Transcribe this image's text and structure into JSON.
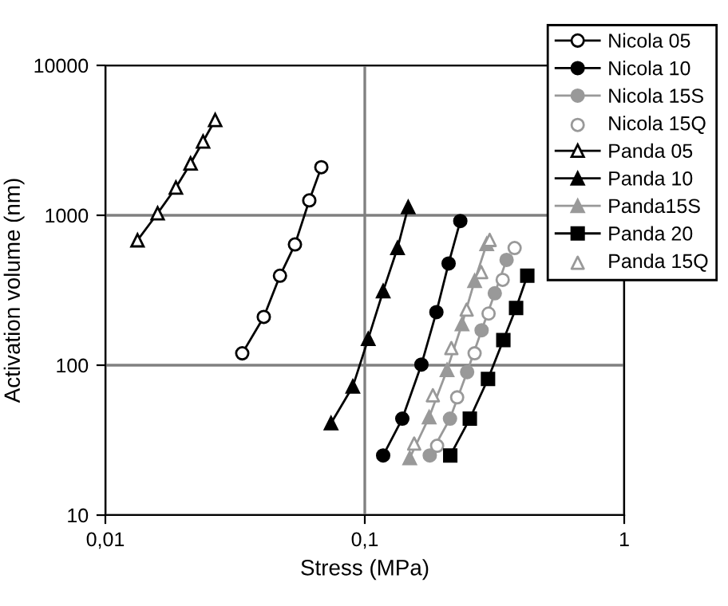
{
  "chart_data": {
    "type": "line",
    "xlabel": "Stress (MPa)",
    "ylabel": "Activation volume (nm)",
    "log": "xy",
    "xlim": [
      0.01,
      1
    ],
    "ylim": [
      10,
      10000
    ],
    "xticks": [
      {
        "value": 0.01,
        "label": "0,01"
      },
      {
        "value": 0.1,
        "label": "0,1"
      },
      1
    ],
    "yticks": [
      10,
      100,
      1000,
      10000
    ],
    "grid": true,
    "legend": "top right",
    "series": [
      {
        "name": "Nicola 05",
        "color": "#000000",
        "marker": "circle",
        "line_style": "solid",
        "x": [
          0.0337,
          0.0408,
          0.0471,
          0.0538,
          0.0611,
          0.068
        ],
        "values": [
          120,
          210,
          395,
          639,
          1257,
          2094
        ]
      },
      {
        "name": "Nicola 10",
        "color": "#000000",
        "marker": "circle",
        "line_style": "solid",
        "x": [
          0.1177,
          0.1395,
          0.1653,
          0.1888,
          0.2104,
          0.2334
        ],
        "values": [
          25,
          44,
          101,
          226,
          477,
          916
        ]
      },
      {
        "name": "Nicola 15S",
        "color": "#999999",
        "marker": "circle",
        "line_style": "solid",
        "x": [
          0.178,
          0.213,
          0.248,
          0.282,
          0.317,
          0.352
        ],
        "values": [
          25,
          44,
          90,
          171,
          302,
          504
        ]
      },
      {
        "name": "Nicola 15Q",
        "type": "scatter",
        "color": "#999999",
        "marker": "circle",
        "x": [
          0.19,
          0.227,
          0.265,
          0.3,
          0.34,
          0.378
        ],
        "values": [
          29,
          61,
          120,
          221,
          371,
          605
        ]
      },
      {
        "name": "Panda 05",
        "color": "#000000",
        "marker": "triangle",
        "line_style": "solid",
        "x": [
          0.0133,
          0.0159,
          0.0187,
          0.0213,
          0.0238,
          0.0265
        ],
        "values": [
          681,
          1031,
          1530,
          2217,
          3107,
          4324
        ]
      },
      {
        "name": "Panda 10",
        "color": "#000000",
        "marker": "triangle",
        "line_style": "solid",
        "x": [
          0.0741,
          0.0899,
          0.1031,
          0.1177,
          0.1337,
          0.147
        ],
        "values": [
          41,
          72,
          150,
          312,
          605,
          1133
        ]
      },
      {
        "name": "Panda15S",
        "color": "#999999",
        "marker": "triangle",
        "line_style": "solid",
        "x": [
          0.149,
          0.177,
          0.2075,
          0.237,
          0.265,
          0.295
        ],
        "values": [
          24,
          45,
          93,
          188,
          365,
          643
        ]
      },
      {
        "name": "Panda 20",
        "color": "#000000",
        "marker": "square",
        "line_style": "solid",
        "x": [
          0.2135,
          0.254,
          0.2985,
          0.342,
          0.383,
          0.423
        ],
        "values": [
          25,
          44,
          81,
          147,
          241,
          395
        ]
      },
      {
        "name": "Panda 15Q",
        "type": "scatter",
        "color": "#999999",
        "marker": "triangle",
        "x": [
          0.155,
          0.183,
          0.2156,
          0.247,
          0.281,
          0.303
        ],
        "values": [
          30,
          63,
          130,
          235,
          418,
          685
        ]
      }
    ]
  }
}
